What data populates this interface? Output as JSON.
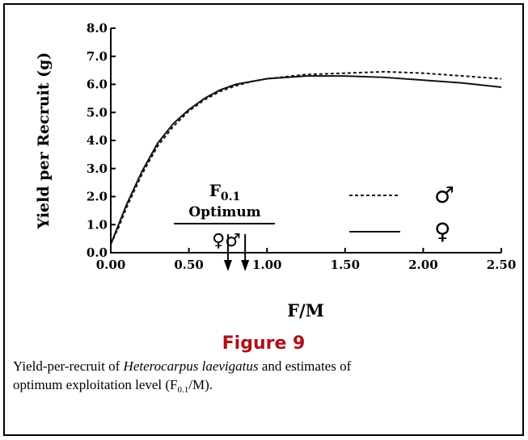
{
  "chart_data": {
    "type": "line",
    "xlabel": "F/M",
    "ylabel": "Yield per Recruit  (g)",
    "x": [
      0,
      0.05,
      0.1,
      0.2,
      0.3,
      0.4,
      0.5,
      0.6,
      0.7,
      0.8,
      0.9,
      1.0,
      1.25,
      1.5,
      1.75,
      2.0,
      2.25,
      2.5
    ],
    "series": [
      {
        "name": "♂",
        "color": "#111111",
        "dash": true,
        "values": [
          0.3,
          0.9,
          1.6,
          2.8,
          3.8,
          4.5,
          5.05,
          5.45,
          5.75,
          5.95,
          6.1,
          6.2,
          6.35,
          6.4,
          6.45,
          6.4,
          6.3,
          6.2
        ]
      },
      {
        "name": "♀",
        "color": "#111111",
        "dash": false,
        "values": [
          0.3,
          1.0,
          1.7,
          2.9,
          3.9,
          4.6,
          5.1,
          5.5,
          5.8,
          6.0,
          6.1,
          6.2,
          6.3,
          6.3,
          6.25,
          6.15,
          6.05,
          5.9
        ]
      }
    ],
    "xlim": [
      0,
      2.5
    ],
    "ylim": [
      0,
      8
    ],
    "xticks": [
      {
        "value": 0,
        "label": "0.00"
      },
      {
        "value": 0.5,
        "label": "0.50"
      },
      {
        "value": 1,
        "label": "1.00"
      },
      {
        "value": 1.5,
        "label": "1.50"
      },
      {
        "value": 2,
        "label": "2.00"
      },
      {
        "value": 2.5,
        "label": "2.50"
      }
    ],
    "yticks": [
      {
        "value": 0,
        "label": "0.0"
      },
      {
        "value": 1,
        "label": "1.0"
      },
      {
        "value": 2,
        "label": "2.0"
      },
      {
        "value": 3,
        "label": "3.0"
      },
      {
        "value": 4,
        "label": "4.0"
      },
      {
        "value": 5,
        "label": "5.0"
      },
      {
        "value": 6,
        "label": "6.0"
      },
      {
        "value": 7,
        "label": "7.0"
      },
      {
        "value": 8,
        "label": "8.0"
      }
    ],
    "annotation": {
      "f": "F",
      "sub": "0.1",
      "optimum": "Optimum",
      "sexes": "♀♂",
      "arrows": [
        0.75,
        0.86
      ]
    },
    "figure_label": "Figure 9",
    "caption": {
      "a": "Yield-per-recruit of ",
      "species": "Heterocarpus laevigatus",
      "b": " and estimates of",
      "c": "optimum exploitation level (F",
      "sub": "0.1",
      "d": "/M)."
    }
  }
}
